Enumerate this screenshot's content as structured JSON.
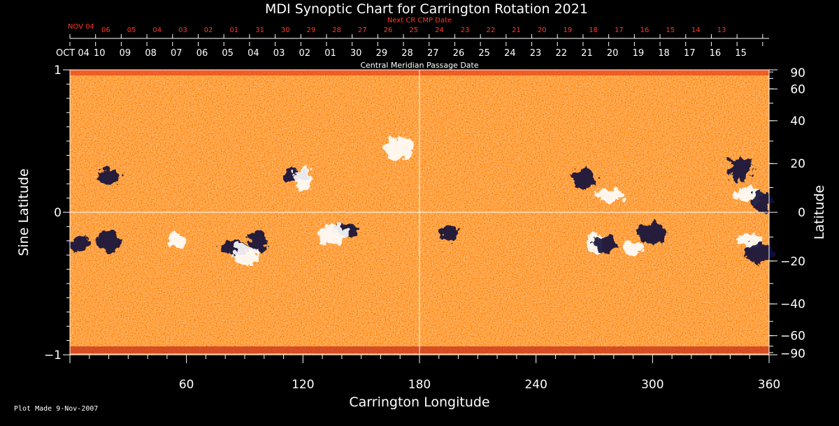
{
  "chart_data": {
    "type": "heatmap",
    "title": "MDI Synoptic Chart for Carrington Rotation 2021",
    "xlabel": "Carrington Longitude",
    "ylabel_left": "Sine Latitude",
    "ylabel_right": "Latitude",
    "xlim": [
      0,
      360
    ],
    "ylim": [
      -1,
      1
    ],
    "x_ticks": [
      60,
      120,
      180,
      240,
      300,
      360
    ],
    "y_ticks_left": [
      {
        "value": 1,
        "label": "1"
      },
      {
        "value": 0,
        "label": "0"
      },
      {
        "value": -1,
        "label": "−1"
      }
    ],
    "y_ticks_right_deg": [
      {
        "value": 90,
        "label": "90"
      },
      {
        "value": 60,
        "label": "60"
      },
      {
        "value": 40,
        "label": "40"
      },
      {
        "value": 20,
        "label": "20"
      },
      {
        "value": 0,
        "label": "0"
      },
      {
        "value": -20,
        "label": "−20"
      },
      {
        "value": -40,
        "label": "−40"
      },
      {
        "value": -60,
        "label": "−60"
      },
      {
        "value": -90,
        "label": "−90"
      }
    ],
    "top_axis_label": "Central Meridian Passage Date",
    "top_dates": {
      "first": "OCT 04",
      "labels": [
        "10",
        "09",
        "08",
        "07",
        "06",
        "05",
        "04",
        "03",
        "02",
        "01",
        "30",
        "29",
        "28",
        "27",
        "26",
        "25",
        "24",
        "23",
        "22",
        "21",
        "20",
        "19",
        "18",
        "17",
        "16",
        "15"
      ]
    },
    "next_cr_axis": {
      "label": "Next CR CMP Date",
      "first": "NOV 04",
      "labels": [
        "06",
        "05",
        "04",
        "03",
        "02",
        "01",
        "31",
        "30",
        "29",
        "28",
        "27",
        "26",
        "25",
        "24",
        "23",
        "22",
        "21",
        "20",
        "19",
        "18",
        "17",
        "16",
        "15",
        "14",
        "13"
      ]
    },
    "grid_lines": {
      "vertical_longitude": 180,
      "horizontal_sine_latitude": 0
    },
    "colors": {
      "background": "#ff5a1e",
      "positive": "#ffffff",
      "negative": "#10103a",
      "label_red": "#ff3b2a"
    },
    "features": [
      {
        "polarity": "negative",
        "lon": 5,
        "sinlat": -0.22
      },
      {
        "polarity": "negative",
        "lon": 20,
        "sinlat": -0.2
      },
      {
        "polarity": "negative",
        "lon": 85,
        "sinlat": -0.25
      },
      {
        "polarity": "negative",
        "lon": 97,
        "sinlat": -0.2
      },
      {
        "polarity": "negative",
        "lon": 142,
        "sinlat": -0.12
      },
      {
        "polarity": "positive",
        "lon": 135,
        "sinlat": -0.15
      },
      {
        "polarity": "positive",
        "lon": 55,
        "sinlat": -0.2
      },
      {
        "polarity": "positive",
        "lon": 90,
        "sinlat": -0.3
      },
      {
        "polarity": "negative",
        "lon": 116,
        "sinlat": 0.26
      },
      {
        "polarity": "positive",
        "lon": 120,
        "sinlat": 0.24
      },
      {
        "polarity": "negative",
        "lon": 20,
        "sinlat": 0.25
      },
      {
        "polarity": "positive",
        "lon": 170,
        "sinlat": 0.45
      },
      {
        "polarity": "negative",
        "lon": 195,
        "sinlat": -0.15
      },
      {
        "polarity": "negative",
        "lon": 265,
        "sinlat": 0.24
      },
      {
        "polarity": "positive",
        "lon": 278,
        "sinlat": 0.12
      },
      {
        "polarity": "positive",
        "lon": 270,
        "sinlat": -0.22
      },
      {
        "polarity": "negative",
        "lon": 276,
        "sinlat": -0.22
      },
      {
        "polarity": "negative",
        "lon": 300,
        "sinlat": -0.15
      },
      {
        "polarity": "positive",
        "lon": 290,
        "sinlat": -0.25
      },
      {
        "polarity": "negative",
        "lon": 345,
        "sinlat": 0.3
      },
      {
        "polarity": "positive",
        "lon": 350,
        "sinlat": 0.12
      },
      {
        "polarity": "negative",
        "lon": 356,
        "sinlat": 0.08
      },
      {
        "polarity": "positive",
        "lon": 350,
        "sinlat": -0.2
      },
      {
        "polarity": "negative",
        "lon": 355,
        "sinlat": -0.28
      }
    ]
  },
  "footer": "Plot Made  9-Nov-2007"
}
